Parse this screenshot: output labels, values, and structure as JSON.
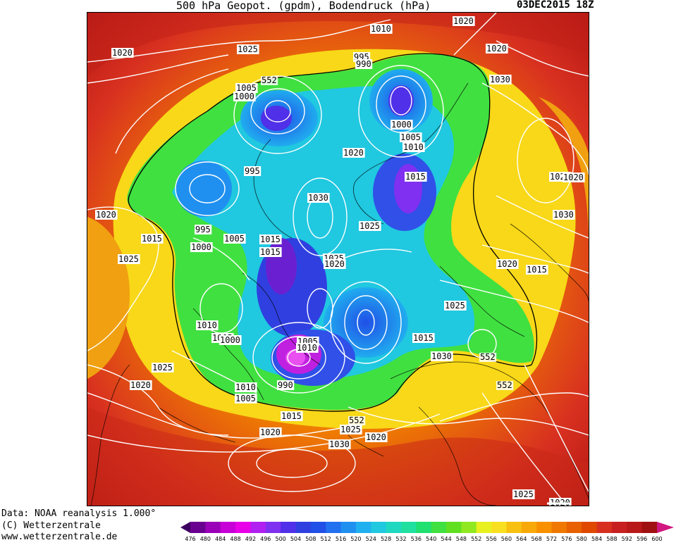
{
  "header": {
    "title": "500 hPa Geopot. (gpdm), Bodendruck (hPa)",
    "date": "03DEC2015 18Z"
  },
  "footer": {
    "data_source": "Data: NOAA reanalysis 1.000°",
    "copyright": "(C) Wetterzentrale",
    "url": "www.wetterzentrale.de"
  },
  "colorbar": {
    "ticks": [
      "476",
      "480",
      "484",
      "488",
      "492",
      "496",
      "500",
      "504",
      "508",
      "512",
      "516",
      "520",
      "524",
      "528",
      "532",
      "536",
      "540",
      "544",
      "548",
      "552",
      "556",
      "560",
      "564",
      "568",
      "572",
      "576",
      "580",
      "584",
      "588",
      "592",
      "596",
      "600"
    ],
    "colors": [
      "#3c0060",
      "#6a0090",
      "#9a00b8",
      "#c800d8",
      "#e800e8",
      "#b020f0",
      "#8030f0",
      "#5030e8",
      "#3040e0",
      "#2050e8",
      "#2070f0",
      "#2090f0",
      "#20b0f0",
      "#20c8e0",
      "#20d8c0",
      "#20e0a0",
      "#20e070",
      "#40e040",
      "#60e020",
      "#90e820",
      "#e8f020",
      "#f8e020",
      "#f8c010",
      "#f8a808",
      "#f89000",
      "#f07800",
      "#e86000",
      "#e04800",
      "#d83020",
      "#c82020",
      "#b81818",
      "#a01010",
      "#d01880"
    ]
  },
  "pressure_labels": [
    "1010",
    "1020",
    "1020",
    "1025",
    "1020",
    "1030",
    "995",
    "990",
    "1005",
    "1000",
    "1000",
    "1005",
    "1010",
    "1020",
    "1015",
    "995",
    "1030",
    "1025",
    "1030",
    "1025",
    "1020",
    "1020",
    "1015",
    "995",
    "1000",
    "1005",
    "1015",
    "1015",
    "1025",
    "1025",
    "1020",
    "1020",
    "1010",
    "1005",
    "1000",
    "1015",
    "1015",
    "1025",
    "1030",
    "1025",
    "1020",
    "1010",
    "1005",
    "990",
    "1005",
    "1010",
    "1015",
    "1020",
    "1030",
    "1025",
    "1020",
    "1025",
    "1020"
  ],
  "height_labels": [
    "552",
    "552",
    "552",
    "552"
  ]
}
